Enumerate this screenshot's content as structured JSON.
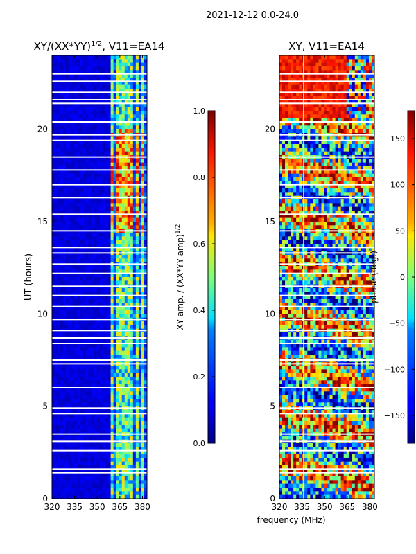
{
  "figure": {
    "suptitle": "2021-12-12 0.0-24.0",
    "xlabel": "frequency (MHz)"
  },
  "chart_data": [
    {
      "type": "heatmap",
      "title": "XY/(XX*YY)",
      "title_exponent": "1/2",
      "title_suffix": ", V11=EA14",
      "ylabel": "UT (hours)",
      "xlim": [
        320,
        383
      ],
      "ylim": [
        0,
        24
      ],
      "xticks": [
        320,
        335,
        350,
        365,
        380
      ],
      "yticks": [
        0,
        5,
        10,
        15,
        20
      ],
      "colorbar": {
        "label": "XY amp. / (XX*YY amp)",
        "label_exponent": "1/2",
        "range": [
          0.0,
          1.0
        ],
        "ticks": [
          0.0,
          0.2,
          0.4,
          0.6,
          0.8,
          1.0
        ],
        "tick_labels": [
          "0.0",
          "0.2",
          "0.4",
          "0.6",
          "0.8",
          "1.0"
        ]
      },
      "bright_channels_mhz": [
        360,
        364,
        366,
        370,
        373,
        377,
        380
      ],
      "high_value_ut_range": [
        14.5,
        20.0
      ],
      "flagged_ut_bands": [
        1.4,
        1.6,
        2.6,
        3.1,
        3.5,
        4.6,
        4.9,
        6.0,
        7.3,
        7.5,
        8.4,
        8.7,
        9.1,
        9.7,
        10.4,
        11.0,
        11.5,
        12.2,
        12.7,
        13.3,
        13.6,
        14.5,
        15.4,
        16.3,
        17.0,
        17.8,
        18.5,
        19.4,
        19.7,
        20.4,
        21.4,
        21.6,
        22.0,
        22.6,
        23.0
      ]
    },
    {
      "type": "heatmap",
      "title": "XY, V11=EA14",
      "ylabel": "",
      "xlim": [
        320,
        383
      ],
      "ylim": [
        0,
        24
      ],
      "xticks": [
        320,
        335,
        350,
        365,
        380
      ],
      "yticks": [
        0,
        5,
        10,
        15,
        20
      ],
      "colorbar": {
        "label": "phase (deg.)",
        "range": [
          -180,
          180
        ],
        "ticks": [
          -150,
          -100,
          -50,
          0,
          50,
          100,
          150
        ],
        "tick_labels": [
          "−150",
          "−100",
          "−50",
          "0",
          "50",
          "100",
          "150"
        ]
      },
      "reference_line_mhz": 336,
      "flagged_ut_bands": [
        1.4,
        1.6,
        2.6,
        3.1,
        3.5,
        4.6,
        4.9,
        6.0,
        7.3,
        7.5,
        8.4,
        8.7,
        9.1,
        9.7,
        10.4,
        11.0,
        11.5,
        12.2,
        12.7,
        13.3,
        13.6,
        14.5,
        15.4,
        16.3,
        17.0,
        17.8,
        18.5,
        19.4,
        19.7,
        20.4,
        21.4,
        21.6,
        22.0,
        22.6,
        23.0
      ]
    }
  ]
}
